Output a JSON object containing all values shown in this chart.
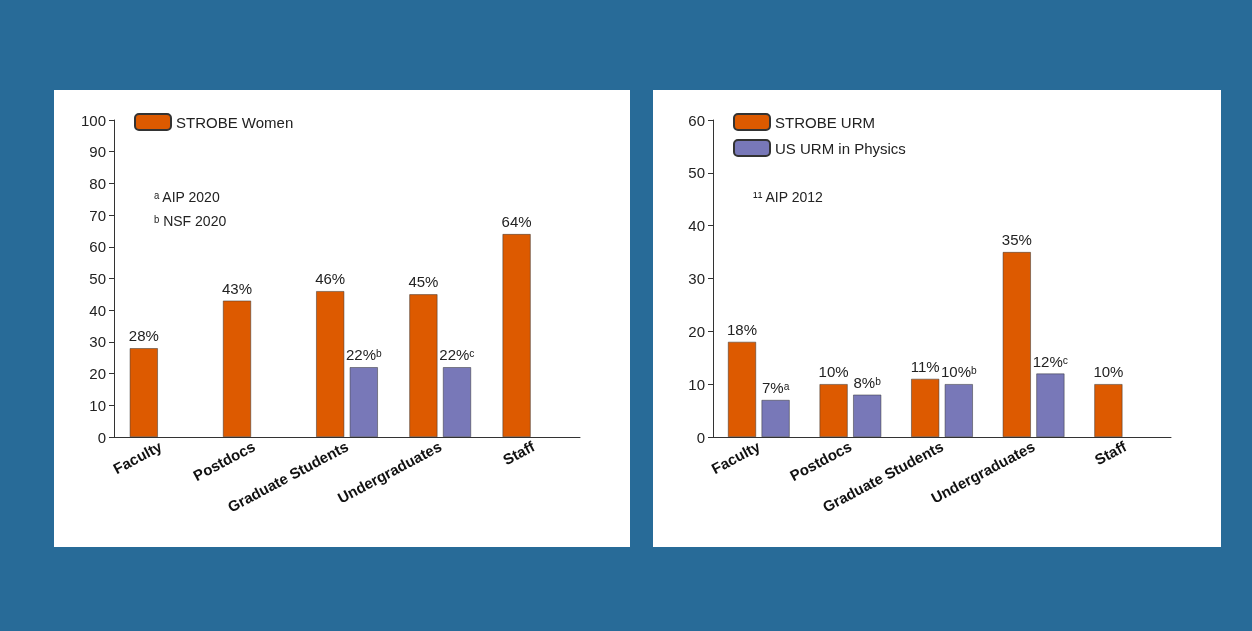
{
  "chart_data": [
    {
      "type": "bar",
      "categories": [
        "Faculty",
        "Postdocs",
        "Graduate Students",
        "Undergraduates",
        "Staff"
      ],
      "series": [
        {
          "name": "STROBE Women",
          "color": "#dd5a00",
          "values": [
            28,
            43,
            46,
            45,
            64
          ],
          "value_labels": [
            "28%",
            "43%",
            "46%",
            "45%",
            "64%"
          ]
        },
        {
          "color": "#7878b8",
          "values": [
            null,
            null,
            22,
            22,
            null
          ],
          "value_labels": [
            null,
            null,
            "22%ᵇ",
            "22%ᶜ",
            null
          ]
        }
      ],
      "ylim": [
        0,
        100
      ],
      "yticks": [
        0,
        10,
        20,
        30,
        40,
        50,
        60,
        70,
        80,
        90,
        100
      ],
      "grid": false,
      "legend": "top left",
      "annotations": [
        "ᵃ AIP 2020",
        "ᵇ NSF 2020"
      ]
    },
    {
      "type": "bar",
      "categories": [
        "Faculty",
        "Postdocs",
        "Graduate Students",
        "Undergraduates",
        "Staff"
      ],
      "series": [
        {
          "name": "STROBE URM",
          "color": "#dd5a00",
          "values": [
            18,
            10,
            11,
            35,
            10
          ],
          "value_labels": [
            "18%",
            "10%",
            "11%",
            "35%",
            "10%"
          ]
        },
        {
          "name": "US URM in Physics",
          "color": "#7878b8",
          "values": [
            7,
            8,
            10,
            12,
            null
          ],
          "value_labels": [
            "7%ᵃ",
            "8%ᵇ",
            "10%ᵇ",
            "12%ᶜ",
            null
          ]
        }
      ],
      "ylim": [
        0,
        60
      ],
      "yticks": [
        0,
        10,
        20,
        30,
        40,
        50,
        60
      ],
      "grid": false,
      "legend": "top left",
      "annotations": [
        "¹¹ AIP 2012"
      ]
    }
  ]
}
